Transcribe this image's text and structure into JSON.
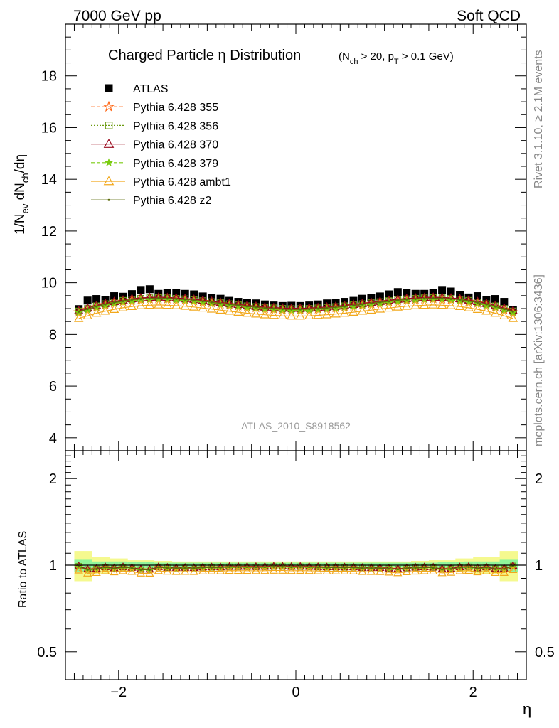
{
  "header": {
    "left": "7000 GeV pp",
    "right": "Soft QCD"
  },
  "side": {
    "rivet": "Rivet 3.1.10, ≥ 2.1M events",
    "mcplots": "mcplots.cern.ch [arXiv:1306:3436]"
  },
  "colors": {
    "atlas": "#000000",
    "p355": "#ff6a1a",
    "p356": "#6b9b10",
    "p370": "#9b0a1e",
    "p379": "#7acc10",
    "ambt1": "#f2a81c",
    "z2": "#5c6b0c",
    "band_inner": "#8ff59a",
    "band_outer": "#f5f98f"
  },
  "chart_data": {
    "type": "line",
    "title": "Charged Particle η Distribution",
    "title_sub": "(N_ch > 20, p_T > 0.1 GeV)",
    "watermark": "ATLAS_2010_S8918562",
    "xlabel": "η",
    "ylabel": "1/N_ev dN_ch/dη",
    "xlim": [
      -2.6,
      2.6
    ],
    "ylim": [
      3.5,
      20.0
    ],
    "yticks": [
      4,
      6,
      8,
      10,
      12,
      14,
      16,
      18
    ],
    "xticks": [
      -2,
      0,
      2
    ],
    "xtick_labels": [
      "−2",
      "0",
      "2"
    ],
    "ratio": {
      "ylabel": "Ratio to ATLAS",
      "ylim": [
        0.4,
        2.5
      ],
      "yticks": [
        0.5,
        1,
        2
      ],
      "ytick_labels": [
        "0.5",
        "1",
        "2"
      ]
    },
    "legend": {
      "position": "top-left",
      "entries": [
        "ATLAS",
        "Pythia 6.428 355",
        "Pythia 6.428 356",
        "Pythia 6.428 370",
        "Pythia 6.428 379",
        "Pythia 6.428 ambt1",
        "Pythia 6.428 z2"
      ]
    },
    "x": [
      -2.45,
      -2.35,
      -2.25,
      -2.15,
      -2.05,
      -1.95,
      -1.85,
      -1.75,
      -1.65,
      -1.55,
      -1.45,
      -1.35,
      -1.25,
      -1.15,
      -1.05,
      -0.95,
      -0.85,
      -0.75,
      -0.65,
      -0.55,
      -0.45,
      -0.35,
      -0.25,
      -0.15,
      -0.05,
      0.05,
      0.15,
      0.25,
      0.35,
      0.45,
      0.55,
      0.65,
      0.75,
      0.85,
      0.95,
      1.05,
      1.15,
      1.25,
      1.35,
      1.45,
      1.55,
      1.65,
      1.75,
      1.85,
      1.95,
      2.05,
      2.15,
      2.25,
      2.35,
      2.45
    ],
    "data": {
      "name": "ATLAS",
      "values": [
        8.98,
        9.31,
        9.37,
        9.33,
        9.48,
        9.46,
        9.56,
        9.72,
        9.75,
        9.57,
        9.6,
        9.6,
        9.57,
        9.55,
        9.47,
        9.42,
        9.38,
        9.3,
        9.26,
        9.22,
        9.2,
        9.16,
        9.12,
        9.1,
        9.11,
        9.1,
        9.12,
        9.16,
        9.2,
        9.22,
        9.26,
        9.3,
        9.38,
        9.42,
        9.47,
        9.55,
        9.64,
        9.6,
        9.57,
        9.57,
        9.6,
        9.72,
        9.66,
        9.52,
        9.43,
        9.48,
        9.34,
        9.37,
        9.26,
        8.95
      ],
      "band_inner": [
        0.05,
        0.05,
        0.03,
        0.03,
        0.03,
        0.03,
        0.025,
        0.025,
        0.025,
        0.02,
        0.02,
        0.02,
        0.02,
        0.02,
        0.02,
        0.02,
        0.02,
        0.02,
        0.02,
        0.02,
        0.02,
        0.02,
        0.02,
        0.02,
        0.02,
        0.02,
        0.02,
        0.02,
        0.02,
        0.02,
        0.02,
        0.02,
        0.02,
        0.02,
        0.02,
        0.02,
        0.02,
        0.02,
        0.02,
        0.02,
        0.02,
        0.025,
        0.025,
        0.025,
        0.03,
        0.03,
        0.03,
        0.03,
        0.05,
        0.05
      ],
      "band_outer": [
        0.12,
        0.12,
        0.07,
        0.07,
        0.055,
        0.055,
        0.04,
        0.04,
        0.04,
        0.035,
        0.035,
        0.03,
        0.03,
        0.03,
        0.03,
        0.03,
        0.03,
        0.03,
        0.03,
        0.03,
        0.03,
        0.03,
        0.03,
        0.03,
        0.03,
        0.03,
        0.03,
        0.03,
        0.03,
        0.03,
        0.03,
        0.03,
        0.03,
        0.03,
        0.03,
        0.03,
        0.03,
        0.03,
        0.035,
        0.035,
        0.04,
        0.04,
        0.04,
        0.055,
        0.055,
        0.07,
        0.07,
        0.07,
        0.12,
        0.12
      ]
    },
    "series": [
      {
        "name": "Pythia 6.428 355",
        "values": [
          8.86,
          8.96,
          9.06,
          9.14,
          9.21,
          9.27,
          9.32,
          9.35,
          9.37,
          9.38,
          9.37,
          9.35,
          9.33,
          9.3,
          9.26,
          9.22,
          9.18,
          9.14,
          9.1,
          9.06,
          9.03,
          9.0,
          8.98,
          8.96,
          8.95,
          8.95,
          8.96,
          8.98,
          9.0,
          9.03,
          9.06,
          9.1,
          9.14,
          9.18,
          9.22,
          9.26,
          9.3,
          9.33,
          9.35,
          9.37,
          9.38,
          9.37,
          9.35,
          9.32,
          9.27,
          9.21,
          9.14,
          9.06,
          8.96,
          8.86
        ]
      },
      {
        "name": "Pythia 6.428 356",
        "values": [
          8.9,
          9.0,
          9.1,
          9.18,
          9.25,
          9.31,
          9.36,
          9.39,
          9.41,
          9.42,
          9.41,
          9.39,
          9.37,
          9.34,
          9.3,
          9.26,
          9.22,
          9.18,
          9.14,
          9.1,
          9.07,
          9.04,
          9.02,
          9.0,
          8.99,
          8.99,
          9.0,
          9.02,
          9.04,
          9.07,
          9.1,
          9.14,
          9.18,
          9.22,
          9.26,
          9.3,
          9.34,
          9.37,
          9.39,
          9.41,
          9.42,
          9.41,
          9.39,
          9.36,
          9.31,
          9.25,
          9.18,
          9.1,
          9.0,
          8.9
        ]
      },
      {
        "name": "Pythia 6.428 370",
        "values": [
          8.92,
          9.02,
          9.12,
          9.2,
          9.27,
          9.33,
          9.38,
          9.41,
          9.43,
          9.44,
          9.43,
          9.41,
          9.39,
          9.36,
          9.32,
          9.28,
          9.24,
          9.2,
          9.16,
          9.12,
          9.09,
          9.06,
          9.04,
          9.02,
          9.01,
          9.01,
          9.02,
          9.04,
          9.06,
          9.09,
          9.12,
          9.16,
          9.2,
          9.24,
          9.28,
          9.32,
          9.36,
          9.39,
          9.41,
          9.43,
          9.44,
          9.43,
          9.41,
          9.38,
          9.33,
          9.27,
          9.2,
          9.12,
          9.02,
          8.92
        ]
      },
      {
        "name": "Pythia 6.428 379",
        "values": [
          8.84,
          8.94,
          9.04,
          9.12,
          9.19,
          9.25,
          9.3,
          9.33,
          9.35,
          9.36,
          9.35,
          9.33,
          9.31,
          9.28,
          9.24,
          9.2,
          9.16,
          9.12,
          9.08,
          9.04,
          9.01,
          8.98,
          8.96,
          8.94,
          8.93,
          8.93,
          8.94,
          8.96,
          8.98,
          9.01,
          9.04,
          9.08,
          9.12,
          9.16,
          9.2,
          9.24,
          9.28,
          9.31,
          9.33,
          9.35,
          9.36,
          9.35,
          9.33,
          9.3,
          9.25,
          9.19,
          9.12,
          9.04,
          8.94,
          8.84
        ]
      },
      {
        "name": "Pythia 6.428 ambt1",
        "values": [
          8.62,
          8.72,
          8.82,
          8.9,
          8.97,
          9.03,
          9.08,
          9.11,
          9.13,
          9.14,
          9.13,
          9.11,
          9.09,
          9.06,
          9.02,
          8.98,
          8.94,
          8.9,
          8.86,
          8.82,
          8.79,
          8.76,
          8.74,
          8.72,
          8.71,
          8.71,
          8.72,
          8.74,
          8.76,
          8.79,
          8.82,
          8.86,
          8.9,
          8.94,
          8.98,
          9.02,
          9.06,
          9.09,
          9.11,
          9.13,
          9.14,
          9.13,
          9.11,
          9.08,
          9.03,
          8.97,
          8.9,
          8.82,
          8.72,
          8.62
        ]
      },
      {
        "name": "Pythia 6.428 z2",
        "values": [
          8.88,
          8.98,
          9.08,
          9.16,
          9.23,
          9.29,
          9.34,
          9.37,
          9.39,
          9.4,
          9.39,
          9.37,
          9.35,
          9.32,
          9.28,
          9.24,
          9.2,
          9.16,
          9.12,
          9.08,
          9.05,
          9.02,
          9.0,
          8.98,
          8.97,
          8.97,
          8.98,
          9.0,
          9.02,
          9.05,
          9.08,
          9.12,
          9.16,
          9.2,
          9.24,
          9.28,
          9.32,
          9.35,
          9.37,
          9.39,
          9.4,
          9.39,
          9.37,
          9.34,
          9.29,
          9.23,
          9.16,
          9.08,
          8.98,
          8.88
        ]
      }
    ]
  }
}
